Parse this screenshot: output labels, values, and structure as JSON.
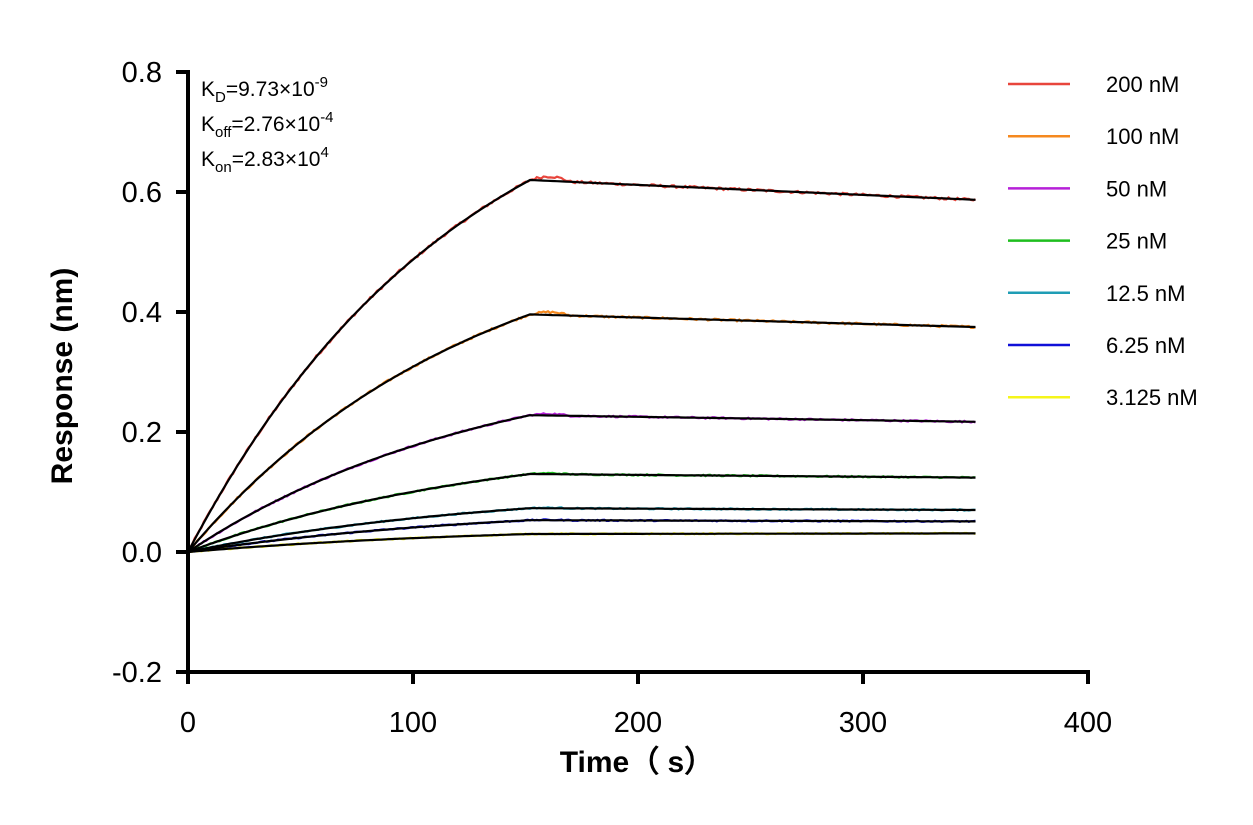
{
  "chart_data": {
    "type": "line",
    "title": "",
    "xlabel": "Time（ s）",
    "ylabel": "Response (nm)",
    "xlim": [
      0,
      400
    ],
    "ylim": [
      -0.2,
      0.8
    ],
    "x_ticks": [
      0,
      100,
      200,
      300,
      400
    ],
    "x_tick_labels": [
      "0",
      "100",
      "200",
      "300",
      "400"
    ],
    "y_ticks": [
      -0.2,
      0.0,
      0.2,
      0.4,
      0.6,
      0.8
    ],
    "y_tick_labels": [
      "-0.2",
      "0.0",
      "0.2",
      "0.4",
      "0.6",
      "0.8"
    ],
    "grid": false,
    "legend_position": "top-right",
    "association_end": 152,
    "time_end": 350,
    "annotations": [
      {
        "label": "KD",
        "main": "K",
        "sub": "D",
        "mantissa": "=9.73×10",
        "exponent": "-9"
      },
      {
        "label": "Koff",
        "main": "K",
        "sub": "off",
        "mantissa": "=2.76×10",
        "exponent": "-4"
      },
      {
        "label": "Kon",
        "main": "K",
        "sub": "on",
        "mantissa": "=2.83×10",
        "exponent": "4"
      }
    ],
    "series": [
      {
        "name": "200 nM",
        "color": "#e8453c",
        "peak": 0.62,
        "end": 0.587
      },
      {
        "name": "100 nM",
        "color": "#f5891f",
        "peak": 0.396,
        "end": 0.375
      },
      {
        "name": "50 nM",
        "color": "#b620d8",
        "peak": 0.228,
        "end": 0.217
      },
      {
        "name": "25 nM",
        "color": "#1ebe1e",
        "peak": 0.13,
        "end": 0.124
      },
      {
        "name": "12.5 nM",
        "color": "#1f9db5",
        "peak": 0.073,
        "end": 0.07
      },
      {
        "name": "6.25 nM",
        "color": "#1010d8",
        "peak": 0.053,
        "end": 0.051
      },
      {
        "name": "3.125 nM",
        "color": "#f5f51a",
        "peak": 0.03,
        "end": 0.031
      }
    ],
    "fit_color": "#000000"
  }
}
